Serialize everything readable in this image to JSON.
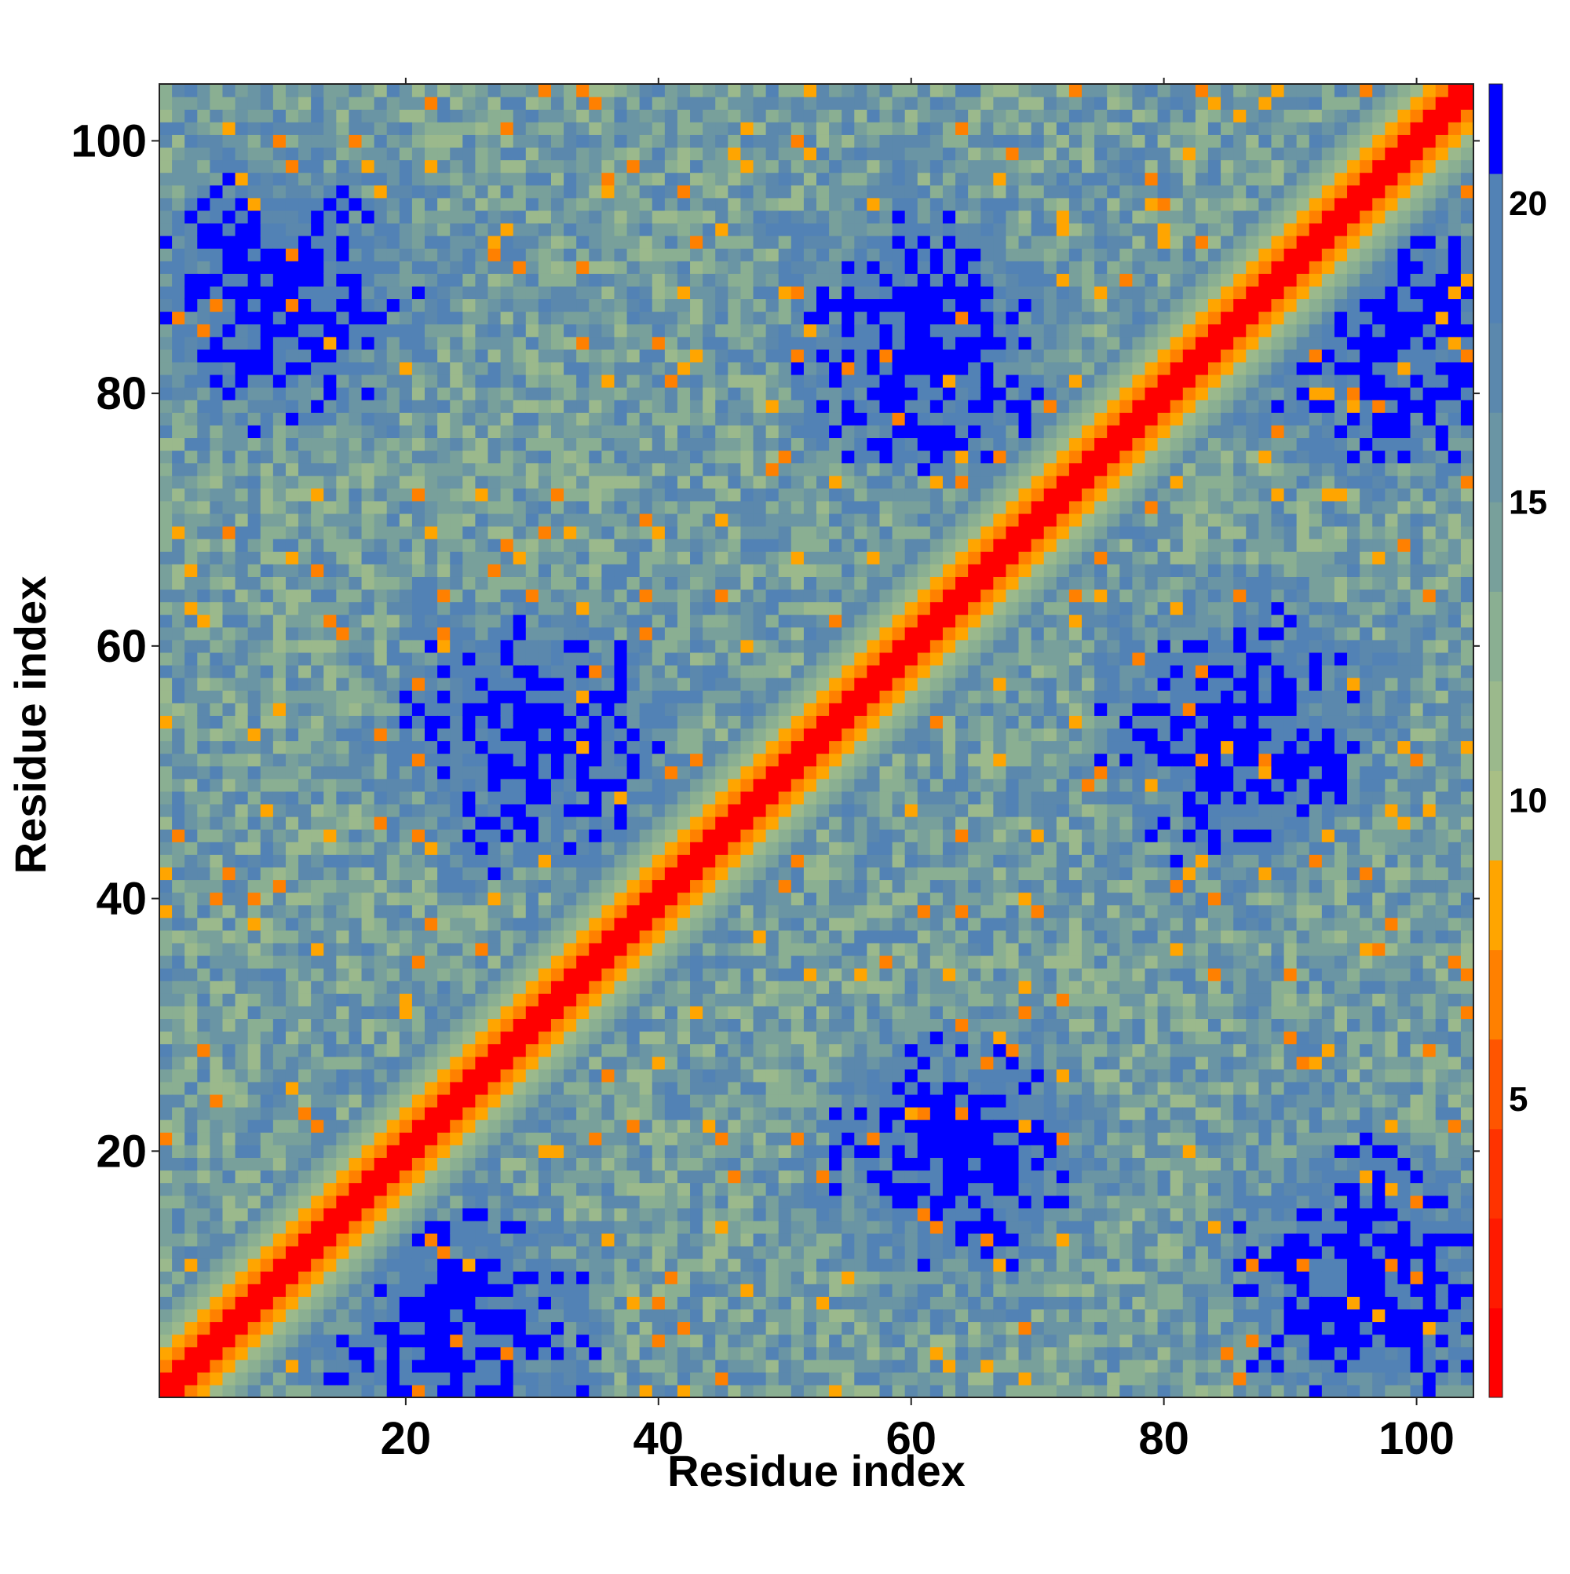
{
  "chart_data": {
    "type": "heatmap",
    "title": "",
    "xlabel": "Residue index",
    "ylabel": "Residue index",
    "n_residues": 104,
    "xlim": [
      0.5,
      104.5
    ],
    "ylim": [
      0.5,
      104.5
    ],
    "x_ticks": [
      20,
      40,
      60,
      80,
      100
    ],
    "x_tick_labels": [
      "20",
      "40",
      "60",
      "80",
      "100"
    ],
    "y_ticks": [
      20,
      40,
      60,
      80,
      100
    ],
    "y_tick_labels": [
      "20",
      "40",
      "60",
      "80",
      "100"
    ],
    "value_range": [
      0,
      22
    ],
    "colorbar": {
      "ticks": [
        5,
        10,
        15,
        20
      ],
      "tick_labels": [
        "5",
        "10",
        "15",
        "20"
      ],
      "bands": [
        {
          "from": 0,
          "to": 1.5,
          "color": "#ff0000"
        },
        {
          "from": 1.5,
          "to": 3,
          "color": "#ff1a00"
        },
        {
          "from": 3,
          "to": 4.5,
          "color": "#ff3300"
        },
        {
          "from": 4.5,
          "to": 6,
          "color": "#ff5500"
        },
        {
          "from": 6,
          "to": 7.5,
          "color": "#ff8000"
        },
        {
          "from": 7.5,
          "to": 9,
          "color": "#ffa500"
        },
        {
          "from": 9,
          "to": 10.5,
          "color": "#a8bf85"
        },
        {
          "from": 10.5,
          "to": 12,
          "color": "#9bb98c"
        },
        {
          "from": 12,
          "to": 13.5,
          "color": "#8aaf92"
        },
        {
          "from": 13.5,
          "to": 15,
          "color": "#78a09b"
        },
        {
          "from": 15,
          "to": 16.5,
          "color": "#6a95a4"
        },
        {
          "from": 16.5,
          "to": 18,
          "color": "#5b88ad"
        },
        {
          "from": 18,
          "to": 20.5,
          "color": "#5282b5"
        },
        {
          "from": 20.5,
          "to": 22,
          "color": "#0000ff"
        }
      ]
    },
    "pattern": {
      "description": "Residue-residue distance map; symmetric, red main diagonal, blue far-apart blocks",
      "diagonal_value": 0,
      "cutoff_blue": 20.5,
      "blocks_blue": [
        [
          10,
          88
        ],
        [
          30,
          53
        ],
        [
          61,
          84
        ],
        [
          86,
          53
        ],
        [
          24,
          5
        ],
        [
          64,
          20
        ],
        [
          98,
          85
        ],
        [
          96,
          10
        ]
      ]
    }
  }
}
